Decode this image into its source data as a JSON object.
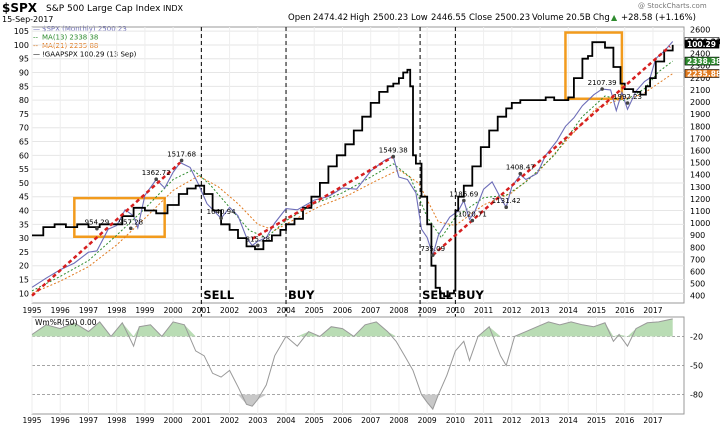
{
  "header": {
    "symbol": "$SPX",
    "name": "S&P 500 Large Cap Index",
    "exchange": "INDX",
    "date": "15-Sep-2017",
    "open_label": "Open",
    "open": "2474.42",
    "high_label": "High",
    "high": "2500.23",
    "low_label": "Low",
    "low": "2446.55",
    "close_label": "Close",
    "close": "2500.23",
    "volume_label": "Volume",
    "volume": "20.5B",
    "chg_label": "Chg",
    "chg": "+28.58 (+1.16%)",
    "chg_arrow": "▲",
    "credit": "@ StockCharts.com"
  },
  "legend": [
    {
      "marker": "—",
      "text": "$SPX (Monthly) 2500.23",
      "color": "#6d6db8"
    },
    {
      "marker": "--",
      "text": "MA(13) 2338.38",
      "color": "#2e8b2e"
    },
    {
      "marker": "--",
      "text": "MA(21) 2235.88",
      "color": "#e07a1f"
    },
    {
      "marker": "—",
      "text": "!GAAPSPX 100.29 (13 Sep)",
      "color": "#000000"
    }
  ],
  "right_tags": [
    {
      "text": "2500.23",
      "value": 2500.23,
      "bg": "#ffffff",
      "fg": "#000000"
    },
    {
      "text": "100.29",
      "value": 100.29,
      "bg": "#000000",
      "fg": "#ffffff",
      "axis": "left"
    },
    {
      "text": "2338.38",
      "value": 2338.38,
      "bg": "#2e8b2e",
      "fg": "#ffffff"
    },
    {
      "text": "2235.88",
      "value": 2235.88,
      "bg": "#e07a1f",
      "fg": "#ffffff"
    }
  ],
  "events": [
    {
      "label": "SELL",
      "year": 2001.0
    },
    {
      "label": "BUY",
      "year": 2004.0
    },
    {
      "label": "SELL",
      "year": 2008.75
    },
    {
      "label": "BUY",
      "year": 2010.0
    }
  ],
  "point_labels": [
    {
      "text": "954.29",
      "year": 1997.3,
      "value": 954.29
    },
    {
      "text": "957.28",
      "year": 1998.5,
      "value": 957.28
    },
    {
      "text": "1362.72",
      "year": 1999.4,
      "value": 1362.72
    },
    {
      "text": "1517.68",
      "year": 2000.3,
      "value": 1517.68
    },
    {
      "text": "1040.94",
      "year": 2001.7,
      "value": 1040.94
    },
    {
      "text": "815.28",
      "year": 2003.0,
      "value": 815.28
    },
    {
      "text": "1549.38",
      "year": 2007.8,
      "value": 1549.38
    },
    {
      "text": "735.09",
      "year": 2009.2,
      "value": 735.09
    },
    {
      "text": "1186.69",
      "year": 2010.3,
      "value": 1186.69
    },
    {
      "text": "1020.71",
      "year": 2010.6,
      "value": 1020.71
    },
    {
      "text": "1131.42",
      "year": 2011.8,
      "value": 1131.42
    },
    {
      "text": "1408.47",
      "year": 2012.3,
      "value": 1408.47
    },
    {
      "text": "2107.39",
      "year": 2015.2,
      "value": 2107.39
    },
    {
      "text": "1992.23",
      "year": 2016.1,
      "value": 1992.23
    }
  ],
  "highlight_boxes": [
    {
      "x0": 1996.5,
      "x1": 1999.7,
      "v0": 30.5,
      "v1": 44.5,
      "color": "#f29b1d"
    },
    {
      "x0": 2013.9,
      "x1": 2015.9,
      "v0": 80.5,
      "v1": 104.5,
      "color": "#f29b1d"
    }
  ],
  "chart_data": {
    "type": "line",
    "x_ticks": [
      1995,
      1996,
      1997,
      1998,
      1999,
      2000,
      2001,
      2002,
      2003,
      2004,
      2005,
      2006,
      2007,
      2008,
      2009,
      2010,
      2011,
      2012,
      2013,
      2014,
      2015,
      2016,
      2017
    ],
    "y_left_ticks": [
      10,
      15,
      20,
      25,
      30,
      35,
      40,
      45,
      50,
      55,
      60,
      65,
      70,
      75,
      80,
      85,
      90,
      95,
      100,
      105
    ],
    "y_left_range": [
      6.5,
      106.5
    ],
    "y_right_ticks": [
      400,
      500,
      600,
      700,
      800,
      900,
      1000,
      1100,
      1200,
      1300,
      1400,
      1500,
      1600,
      1700,
      1800,
      1900,
      2000,
      2100,
      2200,
      2300,
      2400,
      2500,
      2600
    ],
    "y_right_range": [
      340,
      2620
    ],
    "x_range": [
      1995,
      2018.1
    ],
    "spx": [
      [
        1995.0,
        470
      ],
      [
        1995.5,
        545
      ],
      [
        1996.0,
        615
      ],
      [
        1996.5,
        670
      ],
      [
        1997.0,
        760
      ],
      [
        1997.3,
        770
      ],
      [
        1997.7,
        950
      ],
      [
        1998.0,
        980
      ],
      [
        1998.3,
        1110
      ],
      [
        1998.6,
        1060
      ],
      [
        1998.75,
        960
      ],
      [
        1999.0,
        1230
      ],
      [
        1999.4,
        1360
      ],
      [
        1999.7,
        1290
      ],
      [
        2000.0,
        1420
      ],
      [
        2000.25,
        1500
      ],
      [
        2000.6,
        1460
      ],
      [
        2000.9,
        1320
      ],
      [
        2001.2,
        1160
      ],
      [
        2001.7,
        1040
      ],
      [
        2002.0,
        1130
      ],
      [
        2002.3,
        1060
      ],
      [
        2002.6,
        880
      ],
      [
        2002.8,
        815
      ],
      [
        2003.0,
        850
      ],
      [
        2003.3,
        880
      ],
      [
        2003.6,
        1000
      ],
      [
        2004.0,
        1120
      ],
      [
        2004.4,
        1110
      ],
      [
        2005.0,
        1190
      ],
      [
        2005.5,
        1220
      ],
      [
        2006.0,
        1290
      ],
      [
        2006.5,
        1280
      ],
      [
        2007.0,
        1430
      ],
      [
        2007.5,
        1520
      ],
      [
        2007.8,
        1549
      ],
      [
        2008.0,
        1380
      ],
      [
        2008.3,
        1360
      ],
      [
        2008.6,
        1250
      ],
      [
        2008.8,
        950
      ],
      [
        2009.0,
        880
      ],
      [
        2009.2,
        735
      ],
      [
        2009.4,
        900
      ],
      [
        2009.8,
        1050
      ],
      [
        2010.1,
        1100
      ],
      [
        2010.3,
        1186
      ],
      [
        2010.5,
        1030
      ],
      [
        2010.7,
        1100
      ],
      [
        2011.0,
        1280
      ],
      [
        2011.3,
        1340
      ],
      [
        2011.6,
        1210
      ],
      [
        2011.8,
        1131
      ],
      [
        2012.0,
        1300
      ],
      [
        2012.3,
        1400
      ],
      [
        2012.5,
        1360
      ],
      [
        2012.9,
        1410
      ],
      [
        2013.2,
        1560
      ],
      [
        2013.6,
        1680
      ],
      [
        2013.9,
        1800
      ],
      [
        2014.2,
        1870
      ],
      [
        2014.5,
        1970
      ],
      [
        2014.9,
        2060
      ],
      [
        2015.2,
        2107
      ],
      [
        2015.5,
        2100
      ],
      [
        2015.7,
        1930
      ],
      [
        2015.9,
        2080
      ],
      [
        2016.1,
        1940
      ],
      [
        2016.4,
        2090
      ],
      [
        2016.7,
        2170
      ],
      [
        2016.9,
        2200
      ],
      [
        2017.1,
        2360
      ],
      [
        2017.4,
        2420
      ],
      [
        2017.7,
        2500
      ]
    ],
    "ma13": [
      [
        1995.0,
        440
      ],
      [
        1996.0,
        560
      ],
      [
        1997.0,
        690
      ],
      [
        1998.0,
        900
      ],
      [
        1999.0,
        1120
      ],
      [
        2000.0,
        1360
      ],
      [
        2000.7,
        1440
      ],
      [
        2001.3,
        1320
      ],
      [
        2002.0,
        1130
      ],
      [
        2002.7,
        940
      ],
      [
        2003.3,
        880
      ],
      [
        2004.0,
        1020
      ],
      [
        2005.0,
        1160
      ],
      [
        2006.0,
        1250
      ],
      [
        2007.0,
        1380
      ],
      [
        2007.8,
        1490
      ],
      [
        2008.4,
        1380
      ],
      [
        2009.0,
        1050
      ],
      [
        2009.5,
        880
      ],
      [
        2010.0,
        1050
      ],
      [
        2011.0,
        1210
      ],
      [
        2011.8,
        1230
      ],
      [
        2012.5,
        1340
      ],
      [
        2013.5,
        1560
      ],
      [
        2014.5,
        1880
      ],
      [
        2015.3,
        2050
      ],
      [
        2016.0,
        2010
      ],
      [
        2016.7,
        2110
      ],
      [
        2017.2,
        2250
      ],
      [
        2017.7,
        2338
      ]
    ],
    "ma21": [
      [
        1995.0,
        420
      ],
      [
        1996.0,
        520
      ],
      [
        1997.0,
        640
      ],
      [
        1998.0,
        820
      ],
      [
        1999.0,
        1040
      ],
      [
        2000.0,
        1270
      ],
      [
        2000.9,
        1390
      ],
      [
        2001.6,
        1300
      ],
      [
        2002.3,
        1160
      ],
      [
        2003.0,
        990
      ],
      [
        2003.6,
        940
      ],
      [
        2004.3,
        1030
      ],
      [
        2005.2,
        1140
      ],
      [
        2006.2,
        1230
      ],
      [
        2007.2,
        1350
      ],
      [
        2008.0,
        1440
      ],
      [
        2008.7,
        1330
      ],
      [
        2009.4,
        1010
      ],
      [
        2010.0,
        980
      ],
      [
        2011.0,
        1150
      ],
      [
        2012.0,
        1250
      ],
      [
        2013.0,
        1440
      ],
      [
        2014.0,
        1700
      ],
      [
        2015.0,
        1950
      ],
      [
        2015.8,
        2020
      ],
      [
        2016.6,
        2060
      ],
      [
        2017.7,
        2235
      ]
    ],
    "gaap_pe": [
      [
        1995.0,
        31
      ],
      [
        1995.4,
        34
      ],
      [
        1995.8,
        35
      ],
      [
        1996.2,
        34
      ],
      [
        1996.6,
        35
      ],
      [
        1997.0,
        34
      ],
      [
        1997.4,
        35
      ],
      [
        1997.8,
        35
      ],
      [
        1998.2,
        38
      ],
      [
        1998.6,
        41
      ],
      [
        1999.0,
        40
      ],
      [
        1999.4,
        39
      ],
      [
        1999.8,
        42
      ],
      [
        2000.2,
        46
      ],
      [
        2000.5,
        48
      ],
      [
        2000.8,
        49
      ],
      [
        2001.1,
        46
      ],
      [
        2001.4,
        40
      ],
      [
        2001.7,
        35
      ],
      [
        2002.0,
        33
      ],
      [
        2002.3,
        30
      ],
      [
        2002.6,
        27
      ],
      [
        2002.9,
        26
      ],
      [
        2003.2,
        29
      ],
      [
        2003.5,
        31
      ],
      [
        2003.8,
        33
      ],
      [
        2004.0,
        35
      ],
      [
        2004.3,
        37
      ],
      [
        2004.6,
        41
      ],
      [
        2004.9,
        45
      ],
      [
        2005.2,
        50
      ],
      [
        2005.5,
        56
      ],
      [
        2005.8,
        60
      ],
      [
        2006.1,
        64
      ],
      [
        2006.4,
        69
      ],
      [
        2006.7,
        74
      ],
      [
        2007.0,
        79
      ],
      [
        2007.3,
        83
      ],
      [
        2007.6,
        85
      ],
      [
        2007.8,
        86
      ],
      [
        2008.0,
        88
      ],
      [
        2008.15,
        90
      ],
      [
        2008.3,
        91
      ],
      [
        2008.4,
        85
      ],
      [
        2008.5,
        60
      ],
      [
        2008.6,
        57
      ],
      [
        2008.8,
        45
      ],
      [
        2009.0,
        35
      ],
      [
        2009.15,
        20
      ],
      [
        2009.3,
        12
      ],
      [
        2009.45,
        10
      ],
      [
        2009.6,
        9
      ],
      [
        2009.8,
        10
      ],
      [
        2009.95,
        11
      ],
      [
        2010.0,
        40
      ],
      [
        2010.1,
        45
      ],
      [
        2010.3,
        49
      ],
      [
        2010.6,
        56
      ],
      [
        2010.9,
        63
      ],
      [
        2011.2,
        69
      ],
      [
        2011.5,
        74
      ],
      [
        2011.8,
        77
      ],
      [
        2012.0,
        79
      ],
      [
        2012.3,
        80
      ],
      [
        2012.6,
        80
      ],
      [
        2012.9,
        80
      ],
      [
        2013.2,
        81
      ],
      [
        2013.5,
        80
      ],
      [
        2013.8,
        80
      ],
      [
        2014.0,
        81
      ],
      [
        2014.2,
        88
      ],
      [
        2014.5,
        95
      ],
      [
        2014.7,
        96
      ],
      [
        2014.85,
        101
      ],
      [
        2015.0,
        101
      ],
      [
        2015.15,
        101
      ],
      [
        2015.3,
        99
      ],
      [
        2015.6,
        92
      ],
      [
        2015.85,
        86
      ],
      [
        2016.0,
        84
      ],
      [
        2016.3,
        83
      ],
      [
        2016.55,
        82
      ],
      [
        2016.75,
        85
      ],
      [
        2016.9,
        88
      ],
      [
        2017.1,
        94
      ],
      [
        2017.4,
        98
      ],
      [
        2017.7,
        100
      ]
    ],
    "trendlines": [
      [
        [
          1995.0,
          400
        ],
        [
          2000.25,
          1500
        ]
      ],
      [
        [
          2002.8,
          870
        ],
        [
          2007.8,
          1549
        ]
      ],
      [
        [
          2009.2,
          735
        ],
        [
          2017.6,
          2460
        ]
      ]
    ],
    "williams_r": {
      "label": "Wm%R(50) 0.00",
      "ticks": [
        -20,
        -50,
        -80
      ],
      "range": [
        -100,
        0
      ],
      "values": [
        [
          1995.0,
          -18
        ],
        [
          1995.5,
          -8
        ],
        [
          1996.0,
          -12
        ],
        [
          1996.5,
          -6
        ],
        [
          1997.0,
          -15
        ],
        [
          1997.4,
          -5
        ],
        [
          1997.8,
          -20
        ],
        [
          1998.2,
          -6
        ],
        [
          1998.6,
          -30
        ],
        [
          1998.8,
          -10
        ],
        [
          1999.2,
          -8
        ],
        [
          1999.6,
          -20
        ],
        [
          2000.0,
          -5
        ],
        [
          2000.4,
          -8
        ],
        [
          2000.8,
          -35
        ],
        [
          2001.1,
          -40
        ],
        [
          2001.4,
          -58
        ],
        [
          2001.7,
          -62
        ],
        [
          2002.0,
          -55
        ],
        [
          2002.3,
          -72
        ],
        [
          2002.6,
          -90
        ],
        [
          2002.8,
          -92
        ],
        [
          2003.0,
          -85
        ],
        [
          2003.3,
          -70
        ],
        [
          2003.6,
          -40
        ],
        [
          2004.0,
          -20
        ],
        [
          2004.4,
          -30
        ],
        [
          2004.8,
          -15
        ],
        [
          2005.2,
          -20
        ],
        [
          2005.6,
          -10
        ],
        [
          2006.0,
          -12
        ],
        [
          2006.4,
          -20
        ],
        [
          2006.8,
          -8
        ],
        [
          2007.2,
          -5
        ],
        [
          2007.6,
          -15
        ],
        [
          2007.9,
          -25
        ],
        [
          2008.2,
          -40
        ],
        [
          2008.5,
          -55
        ],
        [
          2008.8,
          -80
        ],
        [
          2009.0,
          -88
        ],
        [
          2009.2,
          -95
        ],
        [
          2009.4,
          -80
        ],
        [
          2009.7,
          -60
        ],
        [
          2010.0,
          -35
        ],
        [
          2010.3,
          -25
        ],
        [
          2010.5,
          -45
        ],
        [
          2010.8,
          -20
        ],
        [
          2011.2,
          -10
        ],
        [
          2011.6,
          -40
        ],
        [
          2011.8,
          -50
        ],
        [
          2012.1,
          -20
        ],
        [
          2012.5,
          -15
        ],
        [
          2012.9,
          -10
        ],
        [
          2013.3,
          -5
        ],
        [
          2013.7,
          -8
        ],
        [
          2014.1,
          -5
        ],
        [
          2014.5,
          -8
        ],
        [
          2014.9,
          -10
        ],
        [
          2015.3,
          -6
        ],
        [
          2015.6,
          -25
        ],
        [
          2015.8,
          -18
        ],
        [
          2016.1,
          -30
        ],
        [
          2016.4,
          -12
        ],
        [
          2016.8,
          -6
        ],
        [
          2017.2,
          -5
        ],
        [
          2017.7,
          -2
        ]
      ]
    }
  }
}
